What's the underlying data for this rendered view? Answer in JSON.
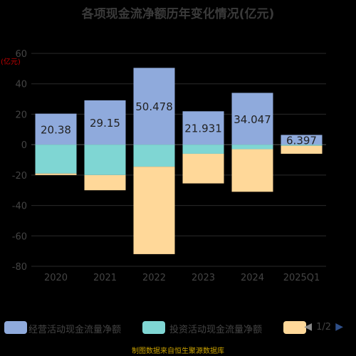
{
  "title": "各项现金流净额历年变化情况(亿元)",
  "unit_label": "(亿元)",
  "source": "制图数据来自恒生聚源数据库",
  "legend": {
    "items": [
      {
        "label": "经营活动现金流量净额",
        "color": "#8faadc"
      },
      {
        "label": "投资活动现金流量净额",
        "color": "#7fd6d3"
      },
      {
        "label": "",
        "color": "#ffd899"
      }
    ],
    "pager": "1/2"
  },
  "chart_data": {
    "type": "bar",
    "stacked": true,
    "categories": [
      "2020",
      "2021",
      "2022",
      "2023",
      "2024",
      "2025Q1"
    ],
    "ylim": [
      -80,
      60
    ],
    "yticks": [
      60,
      40,
      20,
      0,
      -20,
      -40,
      -60,
      -80
    ],
    "series": [
      {
        "name": "经营活动现金流量净额",
        "color": "#8faadc",
        "values": [
          20.38,
          29.15,
          50.478,
          21.931,
          34.047,
          6.397
        ],
        "labels": [
          "20.38",
          "29.15",
          "50.478",
          "21.931",
          "34.047",
          "6.397"
        ]
      },
      {
        "name": "投资活动现金流量净额",
        "color": "#7fd6d3",
        "values": [
          -19,
          -20,
          -14.5,
          -6,
          -3,
          -0.7
        ]
      },
      {
        "name": "",
        "color": "#ffd899",
        "values": [
          -1,
          -10,
          -57.5,
          -19.5,
          -28,
          -5.3
        ]
      }
    ]
  }
}
